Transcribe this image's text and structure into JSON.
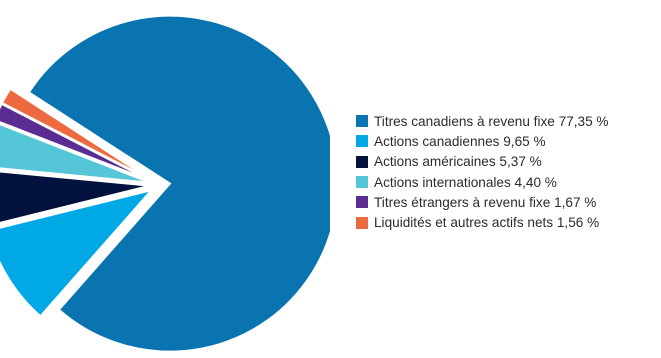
{
  "chart_data": {
    "type": "pie",
    "labels": [
      "Titres canadiens à revenu fixe",
      "Actions canadiennes",
      "Actions américaines",
      "Actions internationales",
      "Titres étrangers à revenu fixe",
      "Liquidités et autres actifs nets"
    ],
    "values": [
      77.35,
      9.65,
      5.37,
      4.4,
      1.67,
      1.56
    ],
    "value_labels": [
      "77,35 %",
      "9,65 %",
      "5,37 %",
      "4,40 %",
      "1,67 %",
      "1,56 %"
    ],
    "colors": [
      "#0a74b0",
      "#00a8e6",
      "#03113d",
      "#55c6d8",
      "#5b2c91",
      "#ed6a40"
    ],
    "legend_position": "right",
    "exploded_slices": "all"
  }
}
